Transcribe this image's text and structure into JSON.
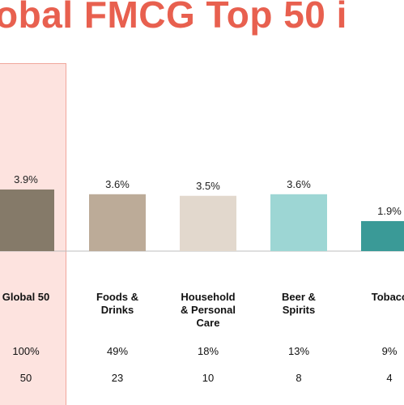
{
  "title": "obal FMCG Top 50 i",
  "chart_data": {
    "type": "bar",
    "title": "obal FMCG Top 50 i",
    "categories": [
      "Global 50",
      "Foods & Drinks",
      "Household & Personal Care",
      "Beer & Spirits",
      "Tobacco"
    ],
    "category_labels": [
      [
        "Global 50"
      ],
      [
        "Foods &",
        "Drinks"
      ],
      [
        "Household",
        "& Personal",
        "Care"
      ],
      [
        "Beer &",
        "Spirits"
      ],
      [
        "Tobacc"
      ]
    ],
    "values": [
      3.9,
      3.6,
      3.5,
      3.6,
      1.9
    ],
    "value_labels": [
      "3.9%",
      "3.6%",
      "3.5%",
      "3.6%",
      "1.9%"
    ],
    "bar_colors": [
      "#857a69",
      "#bcab98",
      "#e2d8cd",
      "#9dd6d4",
      "#3a9a97"
    ],
    "share_labels": [
      "100%",
      "49%",
      "18%",
      "13%",
      "9%"
    ],
    "count_labels": [
      "50",
      "23",
      "10",
      "8",
      "4"
    ],
    "ylim": [
      0,
      6.5
    ],
    "highlight_color": "#fde3df",
    "title_color": "#e8604f"
  }
}
